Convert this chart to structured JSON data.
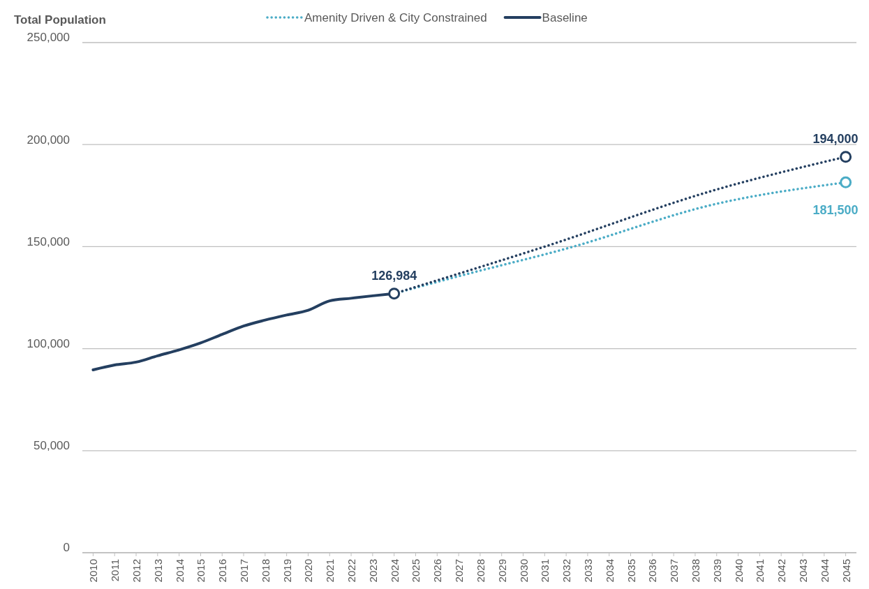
{
  "chart_data": {
    "type": "line",
    "ylabel": "Total Population",
    "xlim": [
      2009.5,
      2045.5
    ],
    "xticks": [
      2010,
      2011,
      2012,
      2013,
      2014,
      2015,
      2016,
      2017,
      2018,
      2019,
      2020,
      2021,
      2022,
      2023,
      2024,
      2025,
      2026,
      2027,
      2028,
      2029,
      2030,
      2031,
      2032,
      2033,
      2034,
      2035,
      2036,
      2037,
      2038,
      2039,
      2040,
      2041,
      2042,
      2043,
      2044,
      2045
    ],
    "ylim": [
      0,
      250000
    ],
    "yticks": [
      {
        "value": 0,
        "label": "0"
      },
      {
        "value": 50000,
        "label": "50,000"
      },
      {
        "value": 100000,
        "label": "100,000"
      },
      {
        "value": 150000,
        "label": "150,000"
      },
      {
        "value": 200000,
        "label": "200,000"
      },
      {
        "value": 250000,
        "label": "250,000"
      }
    ],
    "grid": "y",
    "legend": "top",
    "marker": "none",
    "series": [
      {
        "name": "Amenity Driven & City Constrained",
        "color": "#4bacc6",
        "line_style": "dotted",
        "x": [
          2024,
          2027,
          2032,
          2039,
          2045
        ],
        "values": [
          126984,
          135500,
          149000,
          171000,
          181500
        ],
        "value_labels": [
          null,
          null,
          null,
          null,
          "181,500"
        ]
      },
      {
        "name": "Baseline",
        "color": "#243f60",
        "line_style": "solid",
        "x": [
          2010,
          2011,
          2012,
          2013,
          2014,
          2015,
          2016,
          2017,
          2018,
          2019,
          2020,
          2021,
          2022,
          2023,
          2024
        ],
        "values": [
          89600,
          92000,
          93400,
          96500,
          99400,
          102800,
          107000,
          111100,
          114000,
          116500,
          118800,
          123400,
          124700,
          125900,
          126984
        ],
        "value_labels": [
          null,
          null,
          null,
          null,
          null,
          null,
          null,
          null,
          null,
          null,
          null,
          null,
          null,
          null,
          "126,984"
        ]
      },
      {
        "color": "#243f60",
        "line_style": "dotted",
        "x": [
          2024,
          2031,
          2039,
          2045
        ],
        "values": [
          126984,
          150000,
          178000,
          194000
        ],
        "value_labels": [
          null,
          null,
          null,
          "194,000"
        ]
      }
    ]
  }
}
